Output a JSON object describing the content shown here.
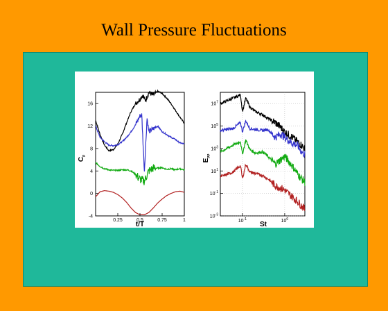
{
  "slide": {
    "title": "Wall Pressure Fluctuations",
    "background_color": "#ff9900",
    "panel_color": "#1fb89a"
  },
  "chart_data": [
    {
      "type": "line",
      "xlabel": "t/T",
      "ylabel": "C_p",
      "xlim": [
        0,
        1
      ],
      "ylim": [
        -4,
        18
      ],
      "xticks": [
        "0.25",
        "0.5",
        "0.75",
        "1"
      ],
      "yticks": [
        "-4",
        "0",
        "4",
        "8",
        "12",
        "16"
      ],
      "grid": false,
      "series": [
        {
          "color": "#000000",
          "x": [
            0.0,
            0.05,
            0.1,
            0.15,
            0.2,
            0.25,
            0.3,
            0.35,
            0.4,
            0.45,
            0.5,
            0.53,
            0.56,
            0.6,
            0.65,
            0.7,
            0.75,
            0.8,
            0.85,
            0.9,
            0.95,
            1.0
          ],
          "y": [
            13,
            10.5,
            8.6,
            7.6,
            7.8,
            8.8,
            10.5,
            12.6,
            14.6,
            16,
            16.8,
            17.5,
            16.5,
            18,
            17.5,
            18.2,
            17.8,
            17,
            16,
            14.8,
            13.6,
            12.5
          ],
          "noisy": true
        },
        {
          "color": "#3333cc",
          "x": [
            0.0,
            0.05,
            0.1,
            0.15,
            0.2,
            0.25,
            0.3,
            0.35,
            0.4,
            0.45,
            0.5,
            0.52,
            0.55,
            0.58,
            0.6,
            0.65,
            0.7,
            0.75,
            0.8,
            0.85,
            0.9,
            0.95,
            1.0
          ],
          "y": [
            12,
            10,
            9.2,
            8.6,
            8.5,
            8.7,
            9.2,
            10,
            11,
            12.2,
            13.8,
            14,
            4,
            13.5,
            11,
            11.5,
            12,
            11,
            10.5,
            10,
            9.6,
            9,
            8.8
          ],
          "noisy": true
        },
        {
          "color": "#11aa11",
          "x": [
            0.0,
            0.05,
            0.1,
            0.15,
            0.2,
            0.25,
            0.3,
            0.35,
            0.4,
            0.45,
            0.5,
            0.55,
            0.6,
            0.65,
            0.7,
            0.75,
            0.8,
            0.85,
            0.9,
            0.95,
            1.0
          ],
          "y": [
            5.5,
            4.8,
            4.4,
            4.2,
            4.1,
            4.1,
            4.2,
            4.2,
            4.0,
            3.4,
            2.5,
            2.2,
            4.0,
            4.5,
            4.5,
            4.6,
            4.3,
            4.4,
            4.2,
            4.4,
            4.2
          ],
          "noisy": true
        },
        {
          "color": "#b22222",
          "x": [
            0.0,
            0.05,
            0.1,
            0.15,
            0.2,
            0.25,
            0.3,
            0.35,
            0.4,
            0.45,
            0.5,
            0.55,
            0.6,
            0.65,
            0.7,
            0.75,
            0.8,
            0.85,
            0.9,
            0.95,
            1.0
          ],
          "y": [
            -0.6,
            0.3,
            0.5,
            0.4,
            0.2,
            -0.2,
            -0.8,
            -1.6,
            -2.6,
            -3.4,
            -3.8,
            -3.8,
            -3.4,
            -2.6,
            -1.7,
            -1.0,
            -0.4,
            0.0,
            0.3,
            0.4,
            0.2
          ],
          "noisy": false
        }
      ]
    },
    {
      "type": "line",
      "xlabel": "St",
      "ylabel": "E_pp",
      "xscale": "log",
      "yscale": "log",
      "xlim": [
        0.03,
        3
      ],
      "ylim": [
        0.001,
        100000000.0
      ],
      "xticks": [
        {
          "mant": "10",
          "exp": "-1",
          "value": 0.1
        },
        {
          "mant": "10",
          "exp": "0",
          "value": 1
        }
      ],
      "yticks": [
        {
          "mant": "10",
          "exp": "7",
          "value": 10000000.0
        },
        {
          "mant": "10",
          "exp": "5",
          "value": 100000.0
        },
        {
          "mant": "10",
          "exp": "3",
          "value": 1000.0
        },
        {
          "mant": "10",
          "exp": "1",
          "value": 10.0
        },
        {
          "mant": "10",
          "exp": "-1",
          "value": 0.1
        },
        {
          "mant": "10",
          "exp": "-3",
          "value": 0.001
        }
      ],
      "grid": true,
      "series": [
        {
          "color": "#000000",
          "x": [
            0.03,
            0.06,
            0.09,
            0.1,
            0.12,
            0.15,
            0.2,
            0.3,
            0.4,
            0.6,
            0.8,
            1.0,
            1.5,
            2.0,
            2.5,
            3.0
          ],
          "y": [
            10000000.0,
            30000000.0,
            60000000.0,
            2000000.0,
            30000000.0,
            5000000.0,
            2000000.0,
            1000000.0,
            500000.0,
            200000.0,
            80000.0,
            30000.0,
            10000.0,
            4000.0,
            2000.0,
            1000.0
          ]
        },
        {
          "color": "#3333cc",
          "x": [
            0.03,
            0.06,
            0.09,
            0.1,
            0.12,
            0.15,
            0.2,
            0.3,
            0.4,
            0.6,
            0.8,
            1.0,
            1.5,
            2.0,
            2.5,
            3.0
          ],
          "y": [
            40000.0,
            60000.0,
            200000.0,
            30000.0,
            300000.0,
            60000.0,
            50000.0,
            40000.0,
            50000.0,
            10000.0,
            20000.0,
            10000.0,
            3000.0,
            2000.0,
            500.0,
            300.0
          ]
        },
        {
          "color": "#11aa11",
          "x": [
            0.03,
            0.06,
            0.09,
            0.1,
            0.12,
            0.15,
            0.2,
            0.3,
            0.4,
            0.6,
            0.8,
            1.0,
            1.5,
            2.0,
            2.5,
            3.0
          ],
          "y": [
            500.0,
            2000.0,
            4000.0,
            300.0,
            6000.0,
            800.0,
            400.0,
            500.0,
            200.0,
            40.0,
            100.0,
            200.0,
            30.0,
            6,
            2,
            1
          ]
        },
        {
          "color": "#b22222",
          "x": [
            0.03,
            0.06,
            0.09,
            0.1,
            0.12,
            0.15,
            0.2,
            0.3,
            0.4,
            0.6,
            0.8,
            1.0,
            1.5,
            2.0,
            2.5,
            3.0
          ],
          "y": [
            3,
            8,
            30,
            2,
            40,
            8,
            6,
            4,
            2,
            0.5,
            0.3,
            0.2,
            0.05,
            0.02,
            0.008,
            0.004
          ]
        }
      ]
    }
  ]
}
